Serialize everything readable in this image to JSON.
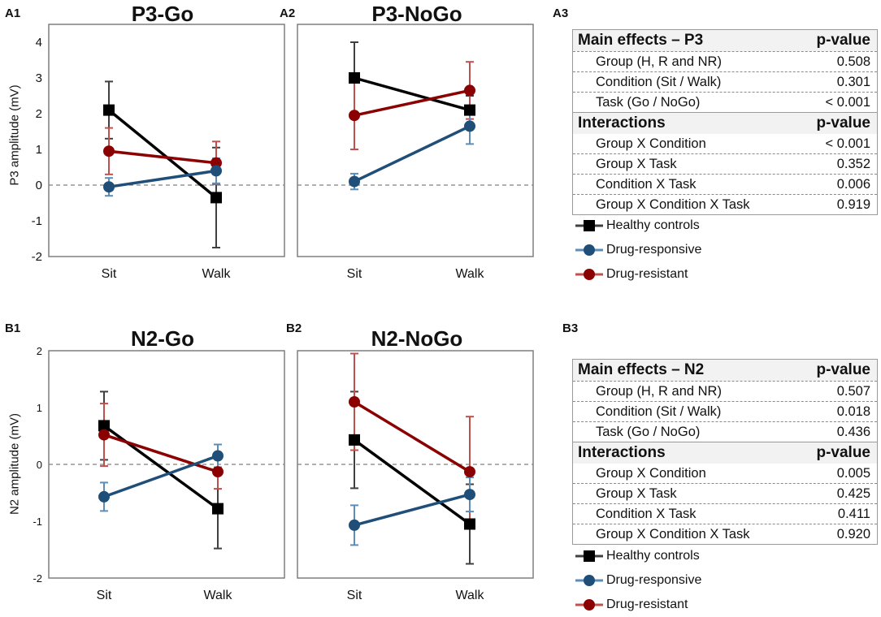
{
  "panels": {
    "a1": "A1",
    "a2": "A2",
    "a3": "A3",
    "b1": "B1",
    "b2": "B2",
    "b3": "B3"
  },
  "colors": {
    "healthy": "#000000",
    "responsive": "#1f4e79",
    "resistant": "#8b0000",
    "healthy_err": "#404040",
    "responsive_err": "#5b8db8",
    "resistant_err": "#c0504d"
  },
  "chart_data": [
    {
      "id": "p3-go",
      "type": "line",
      "title": "P3-Go",
      "ylabel": "P3 amplitude (mV)",
      "categories": [
        "Sit",
        "Walk"
      ],
      "ylim": [
        -2,
        4.5
      ],
      "yticks": [
        -2,
        -1,
        0,
        1,
        2,
        3,
        4
      ],
      "series": [
        {
          "name": "Healthy controls",
          "values": [
            2.1,
            -0.35
          ],
          "errors": [
            0.8,
            1.4
          ]
        },
        {
          "name": "Drug-resistant",
          "values": [
            0.95,
            0.62
          ],
          "errors": [
            0.65,
            0.6
          ]
        },
        {
          "name": "Drug-responsive",
          "values": [
            -0.05,
            0.4
          ],
          "errors": [
            0.25,
            0.35
          ]
        }
      ]
    },
    {
      "id": "p3-nogo",
      "type": "line",
      "title": "P3-NoGo",
      "ylabel": "",
      "categories": [
        "Sit",
        "Walk"
      ],
      "ylim": [
        -2,
        4.5
      ],
      "yticks": [],
      "series": [
        {
          "name": "Healthy controls",
          "values": [
            3.0,
            2.1
          ],
          "errors": [
            1.0,
            0.4
          ]
        },
        {
          "name": "Drug-resistant",
          "values": [
            1.95,
            2.65
          ],
          "errors": [
            0.95,
            0.8
          ]
        },
        {
          "name": "Drug-responsive",
          "values": [
            0.1,
            1.65
          ],
          "errors": [
            0.22,
            0.5
          ]
        }
      ]
    },
    {
      "id": "n2-go",
      "type": "line",
      "title": "N2-Go",
      "ylabel": "N2 amplitude (mV)",
      "categories": [
        "Sit",
        "Walk"
      ],
      "ylim": [
        -2,
        2
      ],
      "yticks": [
        -2,
        -1,
        0,
        1,
        2
      ],
      "series": [
        {
          "name": "Healthy controls",
          "values": [
            0.68,
            -0.78
          ],
          "errors": [
            0.6,
            0.7
          ]
        },
        {
          "name": "Drug-resistant",
          "values": [
            0.52,
            -0.13
          ],
          "errors": [
            0.55,
            0.3
          ]
        },
        {
          "name": "Drug-responsive",
          "values": [
            -0.57,
            0.15
          ],
          "errors": [
            0.25,
            0.2
          ]
        }
      ]
    },
    {
      "id": "n2-nogo",
      "type": "line",
      "title": "N2-NoGo",
      "ylabel": "",
      "categories": [
        "Sit",
        "Walk"
      ],
      "ylim": [
        -2,
        2
      ],
      "yticks": [],
      "series": [
        {
          "name": "Healthy controls",
          "values": [
            0.43,
            -1.05
          ],
          "errors": [
            0.85,
            0.7
          ]
        },
        {
          "name": "Drug-resistant",
          "values": [
            1.1,
            -0.13
          ],
          "errors": [
            0.85,
            0.97
          ]
        },
        {
          "name": "Drug-responsive",
          "values": [
            -1.07,
            -0.53
          ],
          "errors": [
            0.35,
            0.3
          ]
        }
      ]
    }
  ],
  "tables": {
    "p3": {
      "main_header": "Main effects – P3",
      "pvalue_header": "p-value",
      "main_rows": [
        {
          "label": "Group (H, R and NR)",
          "value": "0.508"
        },
        {
          "label": "Condition (Sit / Walk)",
          "value": "0.301"
        },
        {
          "label": "Task (Go / NoGo)",
          "value": "< 0.001"
        }
      ],
      "inter_header": "Interactions",
      "inter_pvalue_header": "p-value",
      "inter_rows": [
        {
          "label": "Group X Condition",
          "value": "< 0.001"
        },
        {
          "label": "Group X Task",
          "value": "0.352"
        },
        {
          "label": "Condition X Task",
          "value": "0.006"
        },
        {
          "label": "Group X Condition X Task",
          "value": "0.919"
        }
      ]
    },
    "n2": {
      "main_header": "Main effects – N2",
      "pvalue_header": "p-value",
      "main_rows": [
        {
          "label": "Group (H, R and NR)",
          "value": "0.507"
        },
        {
          "label": "Condition (Sit / Walk)",
          "value": "0.018"
        },
        {
          "label": "Task (Go / NoGo)",
          "value": "0.436"
        }
      ],
      "inter_header": "Interactions",
      "inter_pvalue_header": "p-value",
      "inter_rows": [
        {
          "label": "Group X Condition",
          "value": "0.005"
        },
        {
          "label": "Group X Task",
          "value": "0.425"
        },
        {
          "label": "Condition X Task",
          "value": "0.411"
        },
        {
          "label": "Group X Condition X Task",
          "value": "0.920"
        }
      ]
    }
  },
  "legend": {
    "healthy": "Healthy controls",
    "responsive": "Drug-responsive",
    "resistant": "Drug-resistant"
  }
}
